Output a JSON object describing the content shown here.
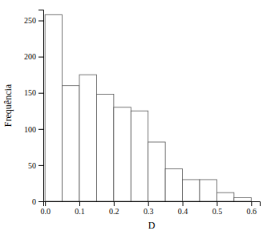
{
  "chart_data": {
    "type": "histogram",
    "bins": [
      0.0,
      0.05,
      0.1,
      0.15,
      0.2,
      0.25,
      0.3,
      0.35,
      0.4,
      0.45,
      0.5,
      0.55,
      0.6
    ],
    "values": [
      258,
      160,
      175,
      148,
      130,
      125,
      82,
      45,
      30,
      30,
      12,
      5
    ],
    "color": "#ffffff",
    "xlabel": "D",
    "ylabel": "Frequência",
    "xlim": [
      -0.005,
      0.625
    ],
    "ylim": [
      0,
      265
    ],
    "xticks": [
      {
        "value": 0.0,
        "label": "0.0"
      },
      0.1,
      0.2,
      0.3,
      0.4,
      0.5,
      0.6
    ],
    "yticks": [
      0,
      50,
      100,
      150,
      200,
      250
    ]
  }
}
